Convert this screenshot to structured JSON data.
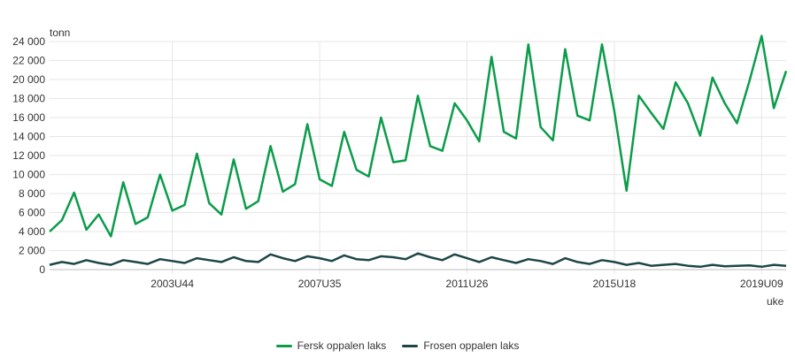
{
  "chart_data": {
    "type": "line",
    "ylabel": "tonn",
    "xlabel": "uke",
    "ylim": [
      0,
      24000
    ],
    "y_ticks": [
      {
        "value": 0,
        "label": "0"
      },
      {
        "value": 2000,
        "label": "2 000"
      },
      {
        "value": 4000,
        "label": "4 000"
      },
      {
        "value": 6000,
        "label": "6 000"
      },
      {
        "value": 8000,
        "label": "8 000"
      },
      {
        "value": 10000,
        "label": "10 000"
      },
      {
        "value": 12000,
        "label": "12 000"
      },
      {
        "value": 14000,
        "label": "14 000"
      },
      {
        "value": 16000,
        "label": "16 000"
      },
      {
        "value": 18000,
        "label": "18 000"
      },
      {
        "value": 20000,
        "label": "20 000"
      },
      {
        "value": 22000,
        "label": "22 000"
      },
      {
        "value": 24000,
        "label": "24 000"
      }
    ],
    "x_ticks": [
      "2003U44",
      "2007U35",
      "2011U26",
      "2015U18",
      "2019U09"
    ],
    "x": [
      "2000U01",
      "2000U17",
      "2001U01",
      "2001U17",
      "2001U36",
      "2002U01",
      "2002U17",
      "2002U36",
      "2003U01",
      "2003U17",
      "2003U44",
      "2004U01",
      "2004U17",
      "2004U36",
      "2005U01",
      "2005U17",
      "2005U36",
      "2006U01",
      "2006U17",
      "2006U36",
      "2007U01",
      "2007U17",
      "2007U35",
      "2008U01",
      "2008U17",
      "2008U36",
      "2009U01",
      "2009U17",
      "2009U36",
      "2010U01",
      "2010U17",
      "2010U36",
      "2011U01",
      "2011U13",
      "2011U26",
      "2011U40",
      "2012U01",
      "2012U17",
      "2012U36",
      "2013U01",
      "2013U17",
      "2013U36",
      "2014U01",
      "2014U17",
      "2014U36",
      "2015U01",
      "2015U18",
      "2015U36",
      "2016U01",
      "2016U17",
      "2016U36",
      "2017U01",
      "2017U17",
      "2017U36",
      "2018U01",
      "2018U17",
      "2018U36",
      "2019U01",
      "2019U09",
      "2019U26",
      "2019U40"
    ],
    "series": [
      {
        "name": "Fersk oppalen laks",
        "color": "#0b9c4a",
        "values": [
          4000,
          5200,
          8100,
          4200,
          5800,
          3500,
          9200,
          4800,
          5500,
          10000,
          6200,
          6800,
          12200,
          7000,
          5800,
          11600,
          6400,
          7200,
          13000,
          8200,
          9000,
          15300,
          9500,
          8800,
          14500,
          10500,
          9800,
          16000,
          11300,
          11500,
          18300,
          13000,
          12500,
          17500,
          15700,
          13500,
          22400,
          14500,
          13800,
          23700,
          15000,
          13600,
          23200,
          16200,
          15700,
          23700,
          16700,
          8300,
          18300,
          16500,
          14800,
          19700,
          17500,
          14100,
          20200,
          17500,
          15400,
          19800,
          24600,
          17000,
          20900
        ]
      },
      {
        "name": "Frosen oppalen laks",
        "color": "#1e4646",
        "values": [
          500,
          800,
          600,
          1000,
          700,
          500,
          1000,
          800,
          600,
          1100,
          900,
          700,
          1200,
          1000,
          800,
          1300,
          900,
          800,
          1600,
          1200,
          900,
          1400,
          1200,
          900,
          1500,
          1100,
          1000,
          1400,
          1300,
          1100,
          1700,
          1300,
          1000,
          1600,
          1200,
          800,
          1300,
          1000,
          700,
          1100,
          900,
          600,
          1200,
          800,
          600,
          1000,
          800,
          500,
          700,
          400,
          500,
          600,
          400,
          300,
          500,
          350,
          400,
          450,
          300,
          500,
          400
        ]
      }
    ],
    "legend_position": "bottom-center",
    "grid": true
  }
}
